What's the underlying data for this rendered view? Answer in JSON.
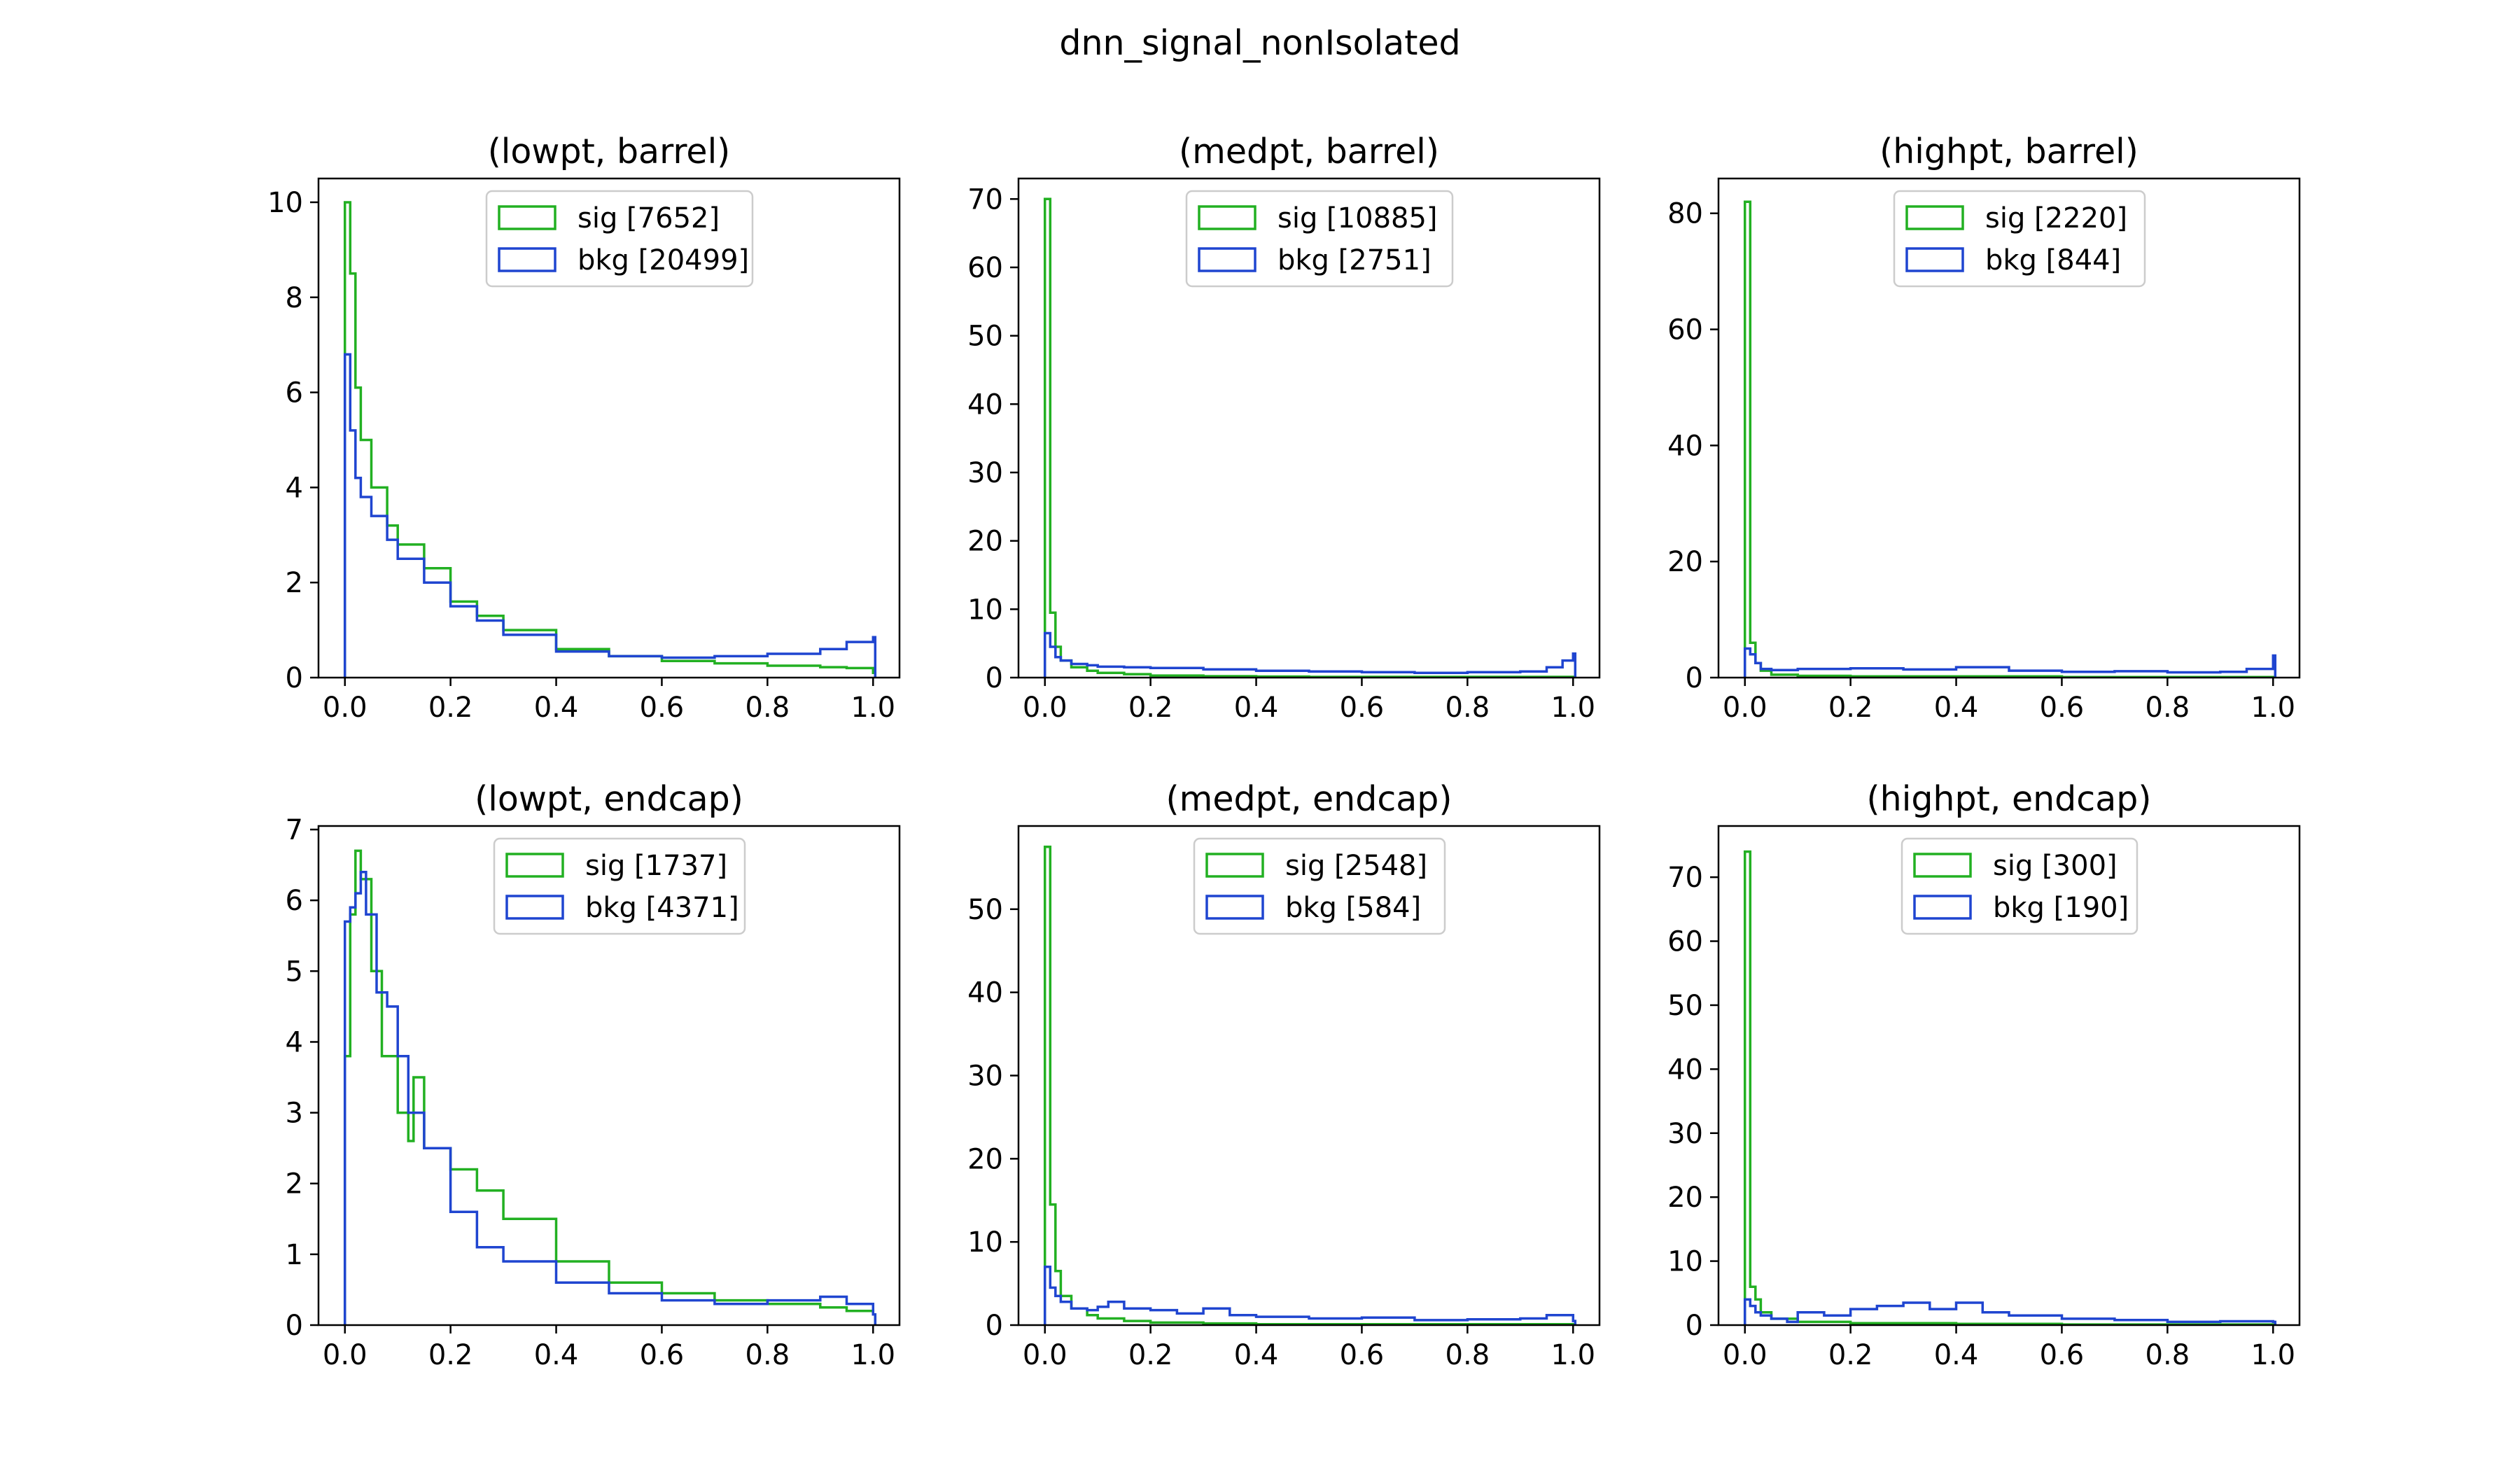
{
  "figure_title": "dnn_signal_nonIsolated",
  "colors": {
    "sig": "#22b022",
    "bkg": "#1f45d0",
    "axes": "#000000"
  },
  "chart_data": [
    {
      "type": "step-histogram",
      "title": "(lowpt, barrel)",
      "xlim": [
        -0.05,
        1.05
      ],
      "ylim": [
        0,
        10.5
      ],
      "xticks": [
        "0.0",
        "0.2",
        "0.4",
        "0.6",
        "0.8",
        "1.0"
      ],
      "yticks": [
        "0",
        "2",
        "4",
        "6",
        "8",
        "10"
      ],
      "legend_placement": "top-center",
      "series": [
        {
          "key": "sig",
          "name": "sig [7652]",
          "x": [
            0.0,
            0.01,
            0.02,
            0.03,
            0.05,
            0.08,
            0.1,
            0.15,
            0.2,
            0.25,
            0.3,
            0.4,
            0.5,
            0.6,
            0.7,
            0.8,
            0.9,
            0.95,
            1.0
          ],
          "y": [
            10.0,
            8.5,
            6.1,
            5.0,
            4.0,
            3.2,
            2.8,
            2.3,
            1.6,
            1.3,
            1.0,
            0.6,
            0.45,
            0.35,
            0.3,
            0.25,
            0.22,
            0.2,
            0.1
          ]
        },
        {
          "key": "bkg",
          "name": "bkg [20499]",
          "x": [
            0.0,
            0.01,
            0.02,
            0.03,
            0.05,
            0.08,
            0.1,
            0.15,
            0.2,
            0.25,
            0.3,
            0.4,
            0.5,
            0.6,
            0.7,
            0.8,
            0.9,
            0.95,
            1.0
          ],
          "y": [
            6.8,
            5.2,
            4.2,
            3.8,
            3.4,
            2.9,
            2.5,
            2.0,
            1.5,
            1.2,
            0.9,
            0.55,
            0.45,
            0.42,
            0.45,
            0.5,
            0.6,
            0.75,
            0.85
          ]
        }
      ]
    },
    {
      "type": "step-histogram",
      "title": "(medpt, barrel)",
      "xlim": [
        -0.05,
        1.05
      ],
      "ylim": [
        0,
        73
      ],
      "xticks": [
        "0.0",
        "0.2",
        "0.4",
        "0.6",
        "0.8",
        "1.0"
      ],
      "yticks": [
        "0",
        "10",
        "20",
        "30",
        "40",
        "50",
        "60",
        "70"
      ],
      "legend_placement": "top-center",
      "series": [
        {
          "key": "sig",
          "name": "sig [10885]",
          "x": [
            0.0,
            0.01,
            0.02,
            0.03,
            0.05,
            0.08,
            0.1,
            0.15,
            0.2,
            0.3,
            0.4,
            0.5,
            0.6,
            0.7,
            0.8,
            0.9,
            1.0
          ],
          "y": [
            70,
            9.5,
            4.5,
            2.5,
            1.5,
            1.0,
            0.7,
            0.5,
            0.3,
            0.2,
            0.15,
            0.1,
            0.1,
            0.1,
            0.1,
            0.1,
            0.1
          ]
        },
        {
          "key": "bkg",
          "name": "bkg [2751]",
          "x": [
            0.0,
            0.01,
            0.02,
            0.03,
            0.05,
            0.08,
            0.1,
            0.15,
            0.2,
            0.3,
            0.4,
            0.5,
            0.6,
            0.7,
            0.8,
            0.9,
            0.95,
            0.98,
            1.0
          ],
          "y": [
            6.5,
            4.5,
            3.0,
            2.5,
            2.0,
            1.8,
            1.6,
            1.5,
            1.4,
            1.2,
            1.0,
            0.9,
            0.8,
            0.7,
            0.8,
            0.9,
            1.5,
            2.5,
            3.5
          ]
        }
      ]
    },
    {
      "type": "step-histogram",
      "title": "(highpt, barrel)",
      "xlim": [
        -0.05,
        1.05
      ],
      "ylim": [
        0,
        86
      ],
      "xticks": [
        "0.0",
        "0.2",
        "0.4",
        "0.6",
        "0.8",
        "1.0"
      ],
      "yticks": [
        "0",
        "20",
        "40",
        "60",
        "80"
      ],
      "legend_placement": "top-center",
      "series": [
        {
          "key": "sig",
          "name": "sig [2220]",
          "x": [
            0.0,
            0.01,
            0.02,
            0.03,
            0.05,
            0.1,
            0.2,
            0.4,
            0.6,
            0.8,
            1.0
          ],
          "y": [
            82,
            6.0,
            2.5,
            1.2,
            0.5,
            0.3,
            0.2,
            0.2,
            0.1,
            0.1,
            0.1
          ]
        },
        {
          "key": "bkg",
          "name": "bkg [844]",
          "x": [
            0.0,
            0.01,
            0.02,
            0.03,
            0.05,
            0.1,
            0.2,
            0.3,
            0.4,
            0.5,
            0.6,
            0.7,
            0.8,
            0.9,
            0.95,
            1.0
          ],
          "y": [
            5.0,
            4.0,
            2.5,
            1.5,
            1.3,
            1.5,
            1.6,
            1.4,
            1.8,
            1.2,
            1.0,
            1.1,
            0.9,
            1.0,
            1.5,
            3.8
          ]
        }
      ]
    },
    {
      "type": "step-histogram",
      "title": "(lowpt, endcap)",
      "xlim": [
        -0.05,
        1.05
      ],
      "ylim": [
        0,
        7.05
      ],
      "xticks": [
        "0.0",
        "0.2",
        "0.4",
        "0.6",
        "0.8",
        "1.0"
      ],
      "yticks": [
        "0",
        "1",
        "2",
        "3",
        "4",
        "5",
        "6",
        "7"
      ],
      "legend_placement": "top-center",
      "series": [
        {
          "key": "sig",
          "name": "sig [1737]",
          "x": [
            0.0,
            0.01,
            0.02,
            0.03,
            0.05,
            0.07,
            0.1,
            0.12,
            0.13,
            0.15,
            0.2,
            0.25,
            0.3,
            0.4,
            0.5,
            0.6,
            0.7,
            0.8,
            0.9,
            0.95,
            1.0
          ],
          "y": [
            3.8,
            5.8,
            6.7,
            6.3,
            5.0,
            3.8,
            3.0,
            2.6,
            3.5,
            2.5,
            2.2,
            1.9,
            1.5,
            0.9,
            0.6,
            0.45,
            0.35,
            0.3,
            0.25,
            0.2,
            0.15
          ]
        },
        {
          "key": "bkg",
          "name": "bkg [4371]",
          "x": [
            0.0,
            0.01,
            0.02,
            0.03,
            0.04,
            0.06,
            0.08,
            0.1,
            0.12,
            0.15,
            0.2,
            0.25,
            0.3,
            0.4,
            0.5,
            0.6,
            0.7,
            0.8,
            0.9,
            0.95,
            1.0
          ],
          "y": [
            5.7,
            5.9,
            6.1,
            6.4,
            5.8,
            4.7,
            4.5,
            3.8,
            3.0,
            2.5,
            1.6,
            1.1,
            0.9,
            0.6,
            0.45,
            0.35,
            0.3,
            0.35,
            0.4,
            0.3,
            0.15
          ]
        }
      ]
    },
    {
      "type": "step-histogram",
      "title": "(medpt, endcap)",
      "xlim": [
        -0.05,
        1.05
      ],
      "ylim": [
        0,
        60
      ],
      "xticks": [
        "0.0",
        "0.2",
        "0.4",
        "0.6",
        "0.8",
        "1.0"
      ],
      "yticks": [
        "0",
        "10",
        "20",
        "30",
        "40",
        "50"
      ],
      "legend_placement": "top-center",
      "series": [
        {
          "key": "sig",
          "name": "sig [2548]",
          "x": [
            0.0,
            0.01,
            0.02,
            0.03,
            0.05,
            0.08,
            0.1,
            0.15,
            0.2,
            0.3,
            0.4,
            0.6,
            0.8,
            1.0
          ],
          "y": [
            57.5,
            14.5,
            6.5,
            3.5,
            2.0,
            1.2,
            0.8,
            0.5,
            0.3,
            0.2,
            0.1,
            0.1,
            0.1,
            0.1
          ]
        },
        {
          "key": "bkg",
          "name": "bkg [584]",
          "x": [
            0.0,
            0.01,
            0.02,
            0.03,
            0.05,
            0.08,
            0.1,
            0.12,
            0.15,
            0.2,
            0.25,
            0.3,
            0.35,
            0.4,
            0.5,
            0.6,
            0.7,
            0.8,
            0.9,
            0.95,
            1.0
          ],
          "y": [
            7.0,
            4.5,
            3.5,
            2.8,
            2.0,
            1.8,
            2.2,
            2.8,
            2.0,
            1.8,
            1.4,
            2.0,
            1.2,
            1.0,
            0.8,
            0.9,
            0.6,
            0.7,
            0.8,
            1.2,
            0.5
          ]
        }
      ]
    },
    {
      "type": "step-histogram",
      "title": "(highpt, endcap)",
      "xlim": [
        -0.05,
        1.05
      ],
      "ylim": [
        0,
        78
      ],
      "xticks": [
        "0.0",
        "0.2",
        "0.4",
        "0.6",
        "0.8",
        "1.0"
      ],
      "yticks": [
        "0",
        "10",
        "20",
        "30",
        "40",
        "50",
        "60",
        "70"
      ],
      "legend_placement": "top-center",
      "series": [
        {
          "key": "sig",
          "name": "sig [300]",
          "x": [
            0.0,
            0.01,
            0.02,
            0.03,
            0.05,
            0.1,
            0.2,
            0.4,
            0.6,
            0.8,
            1.0
          ],
          "y": [
            74,
            6.0,
            4.0,
            2.0,
            1.0,
            0.5,
            0.3,
            0.2,
            0.1,
            0.1,
            0.1
          ]
        },
        {
          "key": "bkg",
          "name": "bkg [190]",
          "x": [
            0.0,
            0.01,
            0.02,
            0.03,
            0.05,
            0.08,
            0.1,
            0.15,
            0.2,
            0.25,
            0.3,
            0.35,
            0.4,
            0.45,
            0.5,
            0.6,
            0.7,
            0.8,
            0.9,
            1.0
          ],
          "y": [
            4.0,
            3.0,
            2.0,
            1.5,
            1.0,
            0.5,
            2.0,
            1.5,
            2.5,
            3.0,
            3.5,
            2.5,
            3.5,
            2.0,
            1.5,
            1.0,
            0.8,
            0.5,
            0.6,
            0.5
          ]
        }
      ]
    }
  ]
}
